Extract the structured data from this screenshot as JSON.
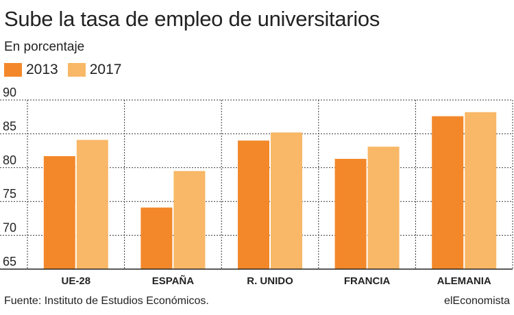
{
  "chart_data": {
    "type": "bar",
    "title": "Sube la tasa de empleo de universitarios",
    "subtitle": "En porcentaje",
    "categories": [
      "UE-28",
      "ESPAÑA",
      "R. UNIDO",
      "FRANCIA",
      "ALEMANIA"
    ],
    "series": [
      {
        "name": "2013",
        "color": "#f3882a",
        "values": [
          81.7,
          74.1,
          84.0,
          81.3,
          87.6
        ]
      },
      {
        "name": "2017",
        "color": "#f8b867",
        "values": [
          84.1,
          79.5,
          85.2,
          83.1,
          88.2
        ]
      }
    ],
    "xlabel": "",
    "ylabel": "",
    "ylim": [
      65,
      90
    ],
    "yticks": [
      65,
      70,
      75,
      80,
      85,
      90
    ],
    "grid": true
  },
  "footer": {
    "source": "Fuente: Instituto de Estudios Económicos.",
    "brand": "elEconomista"
  }
}
